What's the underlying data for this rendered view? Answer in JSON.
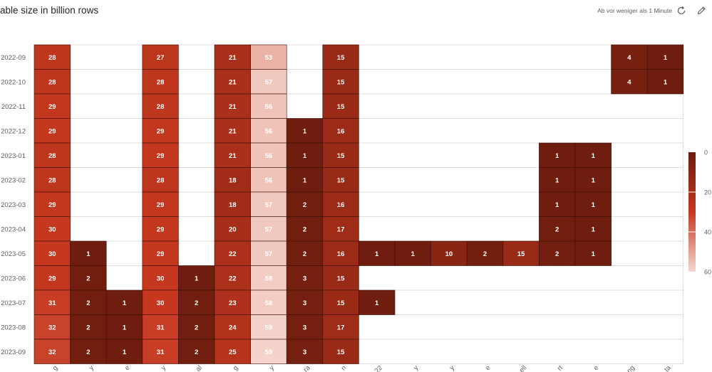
{
  "header": {
    "title": "able size in billion rows",
    "refresh_status": "Ab vor weniger als 1 Minute",
    "refresh_icon": "refresh-icon",
    "edit_icon": "pencil-icon"
  },
  "colors": {
    "low": "#f6d8d0",
    "mid": "#c5381f",
    "high": "#6b1c0d",
    "grid": "#e1dfdd",
    "cell_border": "#3a0f07",
    "label": "#ffffff",
    "axis_text": "#605e5c"
  },
  "chart_data": {
    "type": "heatmap",
    "title": "able size in billion rows",
    "rows": [
      "2022-09",
      "2022-10",
      "2022-11",
      "2022-12",
      "2023-01",
      "2023-02",
      "2023-03",
      "2023-04",
      "2023-05",
      "2023-06",
      "2023-07",
      "2023-08",
      "2023-09"
    ],
    "columns": [
      "g",
      "y",
      "e",
      "y",
      "al",
      "g",
      "y",
      "ra",
      "n",
      "22",
      "y",
      "y",
      "e",
      "ell",
      "rt",
      "e",
      "ng",
      "ta"
    ],
    "values": [
      [
        28,
        null,
        null,
        27,
        null,
        21,
        53,
        null,
        15,
        null,
        null,
        null,
        null,
        null,
        null,
        null,
        4,
        1
      ],
      [
        28,
        null,
        null,
        28,
        null,
        21,
        57,
        null,
        15,
        null,
        null,
        null,
        null,
        null,
        null,
        null,
        4,
        1
      ],
      [
        29,
        null,
        null,
        28,
        null,
        21,
        56,
        null,
        15,
        null,
        null,
        null,
        null,
        null,
        null,
        null,
        null,
        null
      ],
      [
        29,
        null,
        null,
        29,
        null,
        21,
        56,
        1,
        16,
        null,
        null,
        null,
        null,
        null,
        null,
        null,
        null,
        null
      ],
      [
        28,
        null,
        null,
        29,
        null,
        21,
        56,
        1,
        15,
        null,
        null,
        null,
        null,
        null,
        1,
        1,
        null,
        null
      ],
      [
        28,
        null,
        null,
        28,
        null,
        18,
        56,
        1,
        15,
        null,
        null,
        null,
        null,
        null,
        1,
        1,
        null,
        null
      ],
      [
        29,
        null,
        null,
        29,
        null,
        18,
        57,
        2,
        16,
        null,
        null,
        null,
        null,
        null,
        1,
        1,
        null,
        null
      ],
      [
        30,
        null,
        null,
        29,
        null,
        20,
        57,
        2,
        17,
        null,
        null,
        null,
        null,
        null,
        2,
        1,
        null,
        null
      ],
      [
        30,
        1,
        null,
        29,
        null,
        22,
        57,
        2,
        16,
        1,
        1,
        10,
        2,
        15,
        2,
        1,
        null,
        null
      ],
      [
        29,
        2,
        null,
        30,
        1,
        22,
        58,
        3,
        15,
        null,
        null,
        null,
        null,
        null,
        null,
        null,
        null,
        null
      ],
      [
        31,
        2,
        1,
        30,
        2,
        23,
        58,
        3,
        15,
        1,
        null,
        null,
        null,
        null,
        null,
        null,
        null,
        null
      ],
      [
        32,
        2,
        1,
        31,
        2,
        24,
        59,
        3,
        17,
        null,
        null,
        null,
        null,
        null,
        null,
        null,
        null,
        null
      ],
      [
        32,
        2,
        1,
        31,
        2,
        25,
        59,
        3,
        15,
        null,
        null,
        null,
        null,
        null,
        null,
        null,
        null,
        null
      ]
    ],
    "color_scale": {
      "min": 0,
      "max": 60,
      "ticks": [
        "0",
        "20",
        "40",
        "60"
      ]
    }
  }
}
